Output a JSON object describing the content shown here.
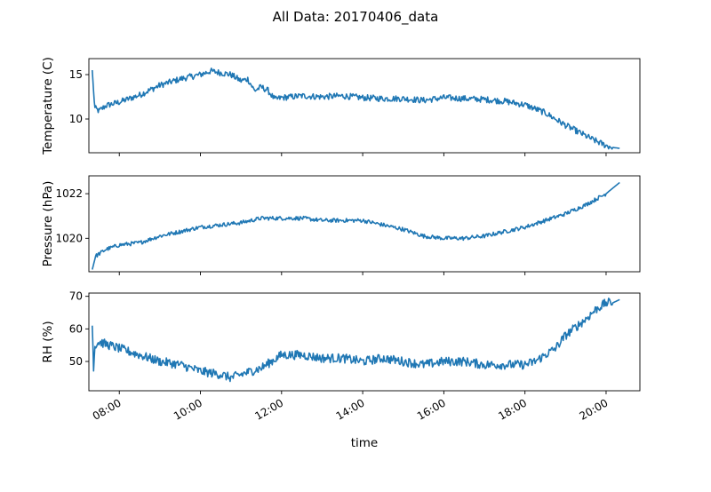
{
  "figure": {
    "suptitle": "All Data: 20170406_data"
  },
  "chart_data": [
    {
      "type": "line",
      "ylabel": "Temperature (C)",
      "xlabel": "",
      "x_range": [
        "07:15",
        "20:50"
      ],
      "ylim": [
        6.2,
        16.8
      ],
      "yticks": [
        10,
        15
      ],
      "ytick_labels": [
        "10",
        "15"
      ],
      "line_color": "#1f77b4",
      "grid": false,
      "series": [
        {
          "x": [
            "07:20",
            "07:22",
            "07:24",
            "07:30",
            "07:40",
            "08:00",
            "08:30",
            "09:00",
            "09:30",
            "10:00",
            "10:15",
            "10:30",
            "10:45",
            "11:00",
            "11:10",
            "11:20",
            "11:30",
            "11:40",
            "11:50",
            "12:00",
            "12:30",
            "13:00",
            "13:30",
            "14:00",
            "14:30",
            "15:00",
            "15:30",
            "16:00",
            "16:30",
            "17:00",
            "17:30",
            "18:00",
            "18:30",
            "19:00",
            "19:20",
            "19:40",
            "20:00",
            "20:10",
            "20:20"
          ],
          "y": [
            15.5,
            13.0,
            11.2,
            10.9,
            11.5,
            11.9,
            12.7,
            13.8,
            14.5,
            15.0,
            15.4,
            15.2,
            15.0,
            14.3,
            14.5,
            13.2,
            13.6,
            13.2,
            12.2,
            12.4,
            12.6,
            12.5,
            12.6,
            12.4,
            12.3,
            12.3,
            12.1,
            12.4,
            12.3,
            12.2,
            12.0,
            11.6,
            10.7,
            9.3,
            8.5,
            7.7,
            7.0,
            6.8,
            6.7
          ]
        }
      ]
    },
    {
      "type": "line",
      "ylabel": "Pressure (hPa)",
      "xlabel": "",
      "x_range": [
        "07:15",
        "20:50"
      ],
      "ylim": [
        1018.5,
        1022.8
      ],
      "yticks": [
        1020,
        1022
      ],
      "ytick_labels": [
        "1020",
        "1022"
      ],
      "line_color": "#1f77b4",
      "grid": false,
      "series": [
        {
          "x": [
            "07:20",
            "07:25",
            "07:40",
            "08:00",
            "08:30",
            "09:00",
            "09:30",
            "10:00",
            "10:30",
            "11:00",
            "11:30",
            "12:00",
            "12:30",
            "13:00",
            "13:30",
            "14:00",
            "14:30",
            "15:00",
            "15:30",
            "16:00",
            "16:30",
            "17:00",
            "17:30",
            "18:00",
            "18:30",
            "19:00",
            "19:30",
            "20:00",
            "20:20"
          ],
          "y": [
            1018.6,
            1019.2,
            1019.5,
            1019.7,
            1019.8,
            1020.1,
            1020.3,
            1020.5,
            1020.6,
            1020.7,
            1020.9,
            1020.9,
            1020.9,
            1020.8,
            1020.8,
            1020.8,
            1020.6,
            1020.4,
            1020.1,
            1020.0,
            1020.0,
            1020.1,
            1020.3,
            1020.5,
            1020.8,
            1021.1,
            1021.5,
            1022.0,
            1022.5
          ]
        }
      ]
    },
    {
      "type": "line",
      "ylabel": "RH (%)",
      "xlabel": "time",
      "x_range": [
        "07:15",
        "20:50"
      ],
      "ylim": [
        41,
        71
      ],
      "yticks": [
        50,
        60,
        70
      ],
      "ytick_labels": [
        "50",
        "60",
        "70"
      ],
      "xticks": [
        "08:00",
        "10:00",
        "12:00",
        "14:00",
        "16:00",
        "18:00",
        "20:00"
      ],
      "xtick_labels": [
        "08:00",
        "10:00",
        "12:00",
        "14:00",
        "16:00",
        "18:00",
        "20:00"
      ],
      "line_color": "#1f77b4",
      "grid": false,
      "series": [
        {
          "x": [
            "07:20",
            "07:22",
            "07:24",
            "07:30",
            "07:45",
            "08:00",
            "08:30",
            "09:00",
            "09:30",
            "10:00",
            "10:30",
            "10:45",
            "11:00",
            "11:15",
            "11:30",
            "11:45",
            "12:00",
            "12:30",
            "13:00",
            "13:30",
            "14:00",
            "14:30",
            "15:00",
            "15:30",
            "16:00",
            "16:30",
            "17:00",
            "17:30",
            "18:00",
            "18:15",
            "18:30",
            "18:45",
            "19:00",
            "19:30",
            "19:45",
            "20:00",
            "20:10",
            "20:20"
          ],
          "y": [
            61,
            48,
            55,
            56,
            55,
            54,
            52,
            50,
            49,
            47,
            46,
            45,
            46,
            47,
            48,
            50,
            52,
            52,
            51,
            51,
            50,
            51,
            50,
            49,
            50,
            50,
            49,
            49,
            49,
            50,
            52,
            54,
            58,
            63,
            66,
            68,
            68,
            69
          ]
        }
      ]
    }
  ]
}
